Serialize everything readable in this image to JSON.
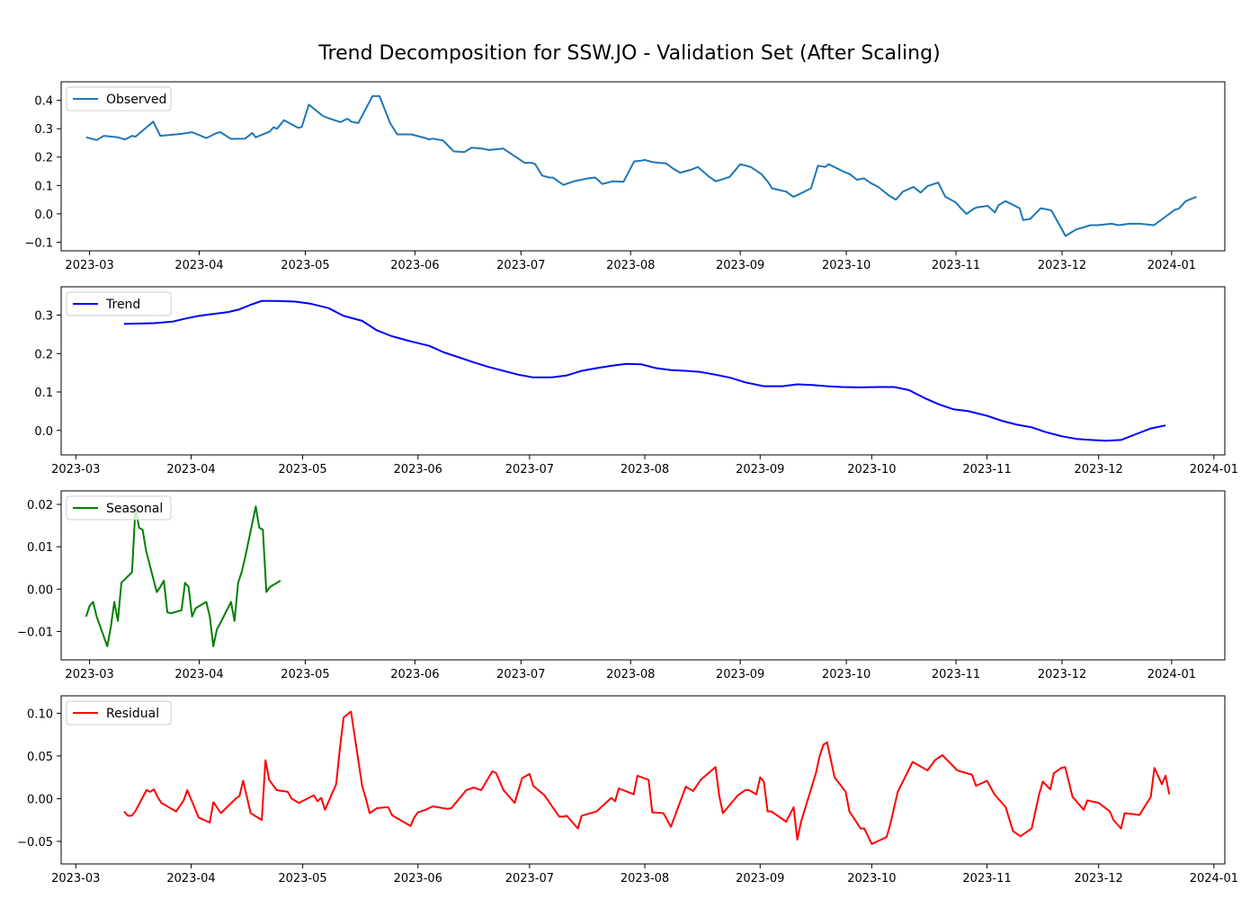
{
  "figure": {
    "title": "Trend Decomposition for SSW.JO - Validation Set (After Scaling)"
  },
  "chart_data": [
    {
      "type": "line",
      "legend": "Observed",
      "legend_position": "top-left",
      "color": "#1f77b4",
      "x_ticks": [
        "2023-03",
        "2023-04",
        "2023-05",
        "2023-06",
        "2023-07",
        "2023-08",
        "2023-09",
        "2023-10",
        "2023-11",
        "2023-12",
        "2024-01"
      ],
      "y_ticks": [
        -0.1,
        0.0,
        0.1,
        0.2,
        0.3,
        0.4
      ],
      "y_tick_labels": [
        "−0.1",
        "0.0",
        "0.1",
        "0.2",
        "0.3",
        "0.4"
      ],
      "xlim": [
        "2023-02-23",
        "2024-01-14"
      ],
      "ylim": [
        -0.105,
        0.44
      ],
      "x": [
        "2023-02-28",
        "2023-03-03",
        "2023-03-05",
        "2023-03-09",
        "2023-03-11",
        "2023-03-13",
        "2023-03-14",
        "2023-03-19",
        "2023-03-21",
        "2023-03-23",
        "2023-03-27",
        "2023-03-30",
        "2023-04-03",
        "2023-04-06",
        "2023-04-07",
        "2023-04-10",
        "2023-04-14",
        "2023-04-16",
        "2023-04-17",
        "2023-04-21",
        "2023-04-22",
        "2023-04-23",
        "2023-04-25",
        "2023-04-29",
        "2023-04-30",
        "2023-05-02",
        "2023-05-06",
        "2023-05-08",
        "2023-05-11",
        "2023-05-12",
        "2023-05-13",
        "2023-05-14",
        "2023-05-16",
        "2023-05-20",
        "2023-05-22",
        "2023-05-25",
        "2023-05-27",
        "2023-05-31",
        "2023-06-04",
        "2023-06-05",
        "2023-06-06",
        "2023-06-09",
        "2023-06-10",
        "2023-06-12",
        "2023-06-15",
        "2023-06-17",
        "2023-06-20",
        "2023-06-22",
        "2023-06-26",
        "2023-06-29",
        "2023-07-02",
        "2023-07-04",
        "2023-07-05",
        "2023-07-07",
        "2023-07-09",
        "2023-07-10",
        "2023-07-13",
        "2023-07-16",
        "2023-07-20",
        "2023-07-22",
        "2023-07-24",
        "2023-07-27",
        "2023-07-30",
        "2023-08-02",
        "2023-08-04",
        "2023-08-05",
        "2023-08-07",
        "2023-08-09",
        "2023-08-11",
        "2023-08-13",
        "2023-08-15",
        "2023-08-18",
        "2023-08-20",
        "2023-08-23",
        "2023-08-25",
        "2023-08-26",
        "2023-08-29",
        "2023-09-01",
        "2023-09-04",
        "2023-09-07",
        "2023-09-09",
        "2023-09-10",
        "2023-09-14",
        "2023-09-16",
        "2023-09-17",
        "2023-09-21",
        "2023-09-23",
        "2023-09-25",
        "2023-09-26",
        "2023-09-30",
        "2023-10-02",
        "2023-10-04",
        "2023-10-06",
        "2023-10-08",
        "2023-10-10",
        "2023-10-13",
        "2023-10-15",
        "2023-10-17",
        "2023-10-20",
        "2023-10-22",
        "2023-10-24",
        "2023-10-27",
        "2023-10-29",
        "2023-11-01",
        "2023-11-02",
        "2023-11-04",
        "2023-11-06",
        "2023-11-07",
        "2023-11-10",
        "2023-11-12",
        "2023-11-13",
        "2023-11-15",
        "2023-11-19",
        "2023-11-20",
        "2023-11-22",
        "2023-11-25",
        "2023-11-27",
        "2023-11-28",
        "2023-12-02",
        "2023-12-05",
        "2023-12-07",
        "2023-12-09",
        "2023-12-11",
        "2023-12-15",
        "2023-12-17",
        "2023-12-20",
        "2023-12-23",
        "2023-12-27",
        "2024-01-02",
        "2024-01-03",
        "2024-01-05",
        "2024-01-08"
      ],
      "y": [
        0.27,
        0.26,
        0.275,
        0.27,
        0.262,
        0.275,
        0.272,
        0.325,
        0.275,
        0.277,
        0.282,
        0.288,
        0.267,
        0.285,
        0.288,
        0.264,
        0.265,
        0.285,
        0.27,
        0.29,
        0.305,
        0.3,
        0.33,
        0.303,
        0.306,
        0.385,
        0.345,
        0.335,
        0.323,
        0.33,
        0.335,
        0.325,
        0.32,
        0.415,
        0.415,
        0.32,
        0.28,
        0.28,
        0.267,
        0.262,
        0.265,
        0.258,
        0.245,
        0.22,
        0.218,
        0.233,
        0.23,
        0.225,
        0.23,
        0.205,
        0.18,
        0.18,
        0.175,
        0.135,
        0.128,
        0.128,
        0.102,
        0.115,
        0.125,
        0.128,
        0.105,
        0.115,
        0.113,
        0.185,
        0.187,
        0.19,
        0.183,
        0.18,
        0.178,
        0.16,
        0.145,
        0.155,
        0.165,
        0.133,
        0.115,
        0.118,
        0.13,
        0.175,
        0.165,
        0.14,
        0.11,
        0.09,
        0.078,
        0.06,
        0.065,
        0.09,
        0.17,
        0.165,
        0.175,
        0.15,
        0.14,
        0.12,
        0.125,
        0.108,
        0.095,
        0.065,
        0.05,
        0.078,
        0.095,
        0.075,
        0.098,
        0.11,
        0.06,
        0.04,
        0.025,
        0.0,
        0.018,
        0.023,
        0.028,
        0.005,
        0.03,
        0.045,
        0.02,
        -0.022,
        -0.018,
        0.02,
        0.015,
        0.012,
        -0.078,
        -0.055,
        -0.048,
        -0.04,
        -0.04,
        -0.035,
        -0.04,
        -0.035,
        -0.035,
        -0.04,
        0.015,
        0.018,
        0.045,
        0.06
      ]
    },
    {
      "type": "line",
      "legend": "Trend",
      "legend_position": "top-left",
      "color": "#0000ff",
      "x_ticks": [
        "2023-03",
        "2023-04",
        "2023-05",
        "2023-06",
        "2023-07",
        "2023-08",
        "2023-09",
        "2023-10",
        "2023-11",
        "2023-12",
        "2024-01"
      ],
      "y_ticks": [
        0.0,
        0.1,
        0.2,
        0.3
      ],
      "y_tick_labels": [
        "0.0",
        "0.1",
        "0.2",
        "0.3"
      ],
      "xlim": [
        "2023-02-27",
        "2024-01-02"
      ],
      "ylim": [
        -0.045,
        0.355
      ],
      "x": [
        "2023-03-14",
        "2023-03-18",
        "2023-03-22",
        "2023-03-27",
        "2023-03-30",
        "2023-04-03",
        "2023-04-07",
        "2023-04-11",
        "2023-04-14",
        "2023-04-17",
        "2023-04-20",
        "2023-04-24",
        "2023-04-29",
        "2023-05-03",
        "2023-05-08",
        "2023-05-12",
        "2023-05-17",
        "2023-05-21",
        "2023-05-25",
        "2023-05-30",
        "2023-06-04",
        "2023-06-08",
        "2023-06-12",
        "2023-06-16",
        "2023-06-20",
        "2023-06-24",
        "2023-06-28",
        "2023-07-02",
        "2023-07-07",
        "2023-07-11",
        "2023-07-15",
        "2023-07-19",
        "2023-07-23",
        "2023-07-27",
        "2023-07-31",
        "2023-08-04",
        "2023-08-08",
        "2023-08-12",
        "2023-08-16",
        "2023-08-20",
        "2023-08-24",
        "2023-08-28",
        "2023-09-02",
        "2023-09-07",
        "2023-09-11",
        "2023-09-15",
        "2023-09-19",
        "2023-09-23",
        "2023-09-28",
        "2023-10-03",
        "2023-10-07",
        "2023-10-11",
        "2023-10-15",
        "2023-10-19",
        "2023-10-23",
        "2023-10-27",
        "2023-11-01",
        "2023-11-05",
        "2023-11-09",
        "2023-11-13",
        "2023-11-17",
        "2023-11-21",
        "2023-11-25",
        "2023-11-29",
        "2023-12-03",
        "2023-12-07",
        "2023-12-11",
        "2023-12-15",
        "2023-12-19"
      ],
      "y": [
        0.277,
        0.278,
        0.279,
        0.283,
        0.29,
        0.298,
        0.303,
        0.308,
        0.315,
        0.327,
        0.337,
        0.337,
        0.335,
        0.33,
        0.318,
        0.298,
        0.285,
        0.26,
        0.245,
        0.232,
        0.22,
        0.203,
        0.19,
        0.177,
        0.165,
        0.155,
        0.145,
        0.138,
        0.138,
        0.143,
        0.155,
        0.162,
        0.168,
        0.173,
        0.172,
        0.162,
        0.157,
        0.155,
        0.152,
        0.145,
        0.137,
        0.125,
        0.115,
        0.115,
        0.12,
        0.118,
        0.115,
        0.113,
        0.112,
        0.113,
        0.113,
        0.105,
        0.085,
        0.068,
        0.055,
        0.05,
        0.038,
        0.025,
        0.015,
        0.008,
        -0.005,
        -0.015,
        -0.022,
        -0.025,
        -0.027,
        -0.025,
        -0.01,
        0.005,
        0.013
      ]
    },
    {
      "type": "line",
      "legend": "Seasonal",
      "legend_position": "top-left",
      "color": "#008000",
      "x_ticks": [
        "2023-03",
        "2023-04",
        "2023-05",
        "2023-06",
        "2023-07",
        "2023-08",
        "2023-09",
        "2023-10",
        "2023-11",
        "2023-12",
        "2024-01"
      ],
      "y_ticks": [
        -0.01,
        0.0,
        0.01,
        0.02
      ],
      "y_tick_labels": [
        "−0.01",
        "0.00",
        "0.01",
        "0.02"
      ],
      "xlim": [
        "2023-02-23",
        "2024-01-14"
      ],
      "ylim": [
        -0.015,
        0.0215
      ],
      "x": [
        "2023-02-28",
        "2023-03-01",
        "2023-03-02",
        "2023-03-03",
        "2023-03-06",
        "2023-03-07",
        "2023-03-08",
        "2023-03-09",
        "2023-03-10",
        "2023-03-13",
        "2023-03-14",
        "2023-03-15",
        "2023-03-16",
        "2023-03-17",
        "2023-03-20",
        "2023-03-21",
        "2023-03-22",
        "2023-03-23",
        "2023-03-24",
        "2023-03-27",
        "2023-03-28",
        "2023-03-29",
        "2023-03-30",
        "2023-03-31",
        "2023-04-03",
        "2023-04-04",
        "2023-04-05",
        "2023-04-06",
        "2023-04-07",
        "2023-04-10",
        "2023-04-11",
        "2023-04-12",
        "2023-04-13",
        "2023-04-14",
        "2023-04-17",
        "2023-04-18",
        "2023-04-19",
        "2023-04-20",
        "2023-04-21",
        "2023-04-24"
      ],
      "y": [
        -0.0065,
        -0.004,
        -0.003,
        -0.0065,
        -0.0135,
        -0.009,
        -0.003,
        -0.0075,
        0.0015,
        0.004,
        0.0195,
        0.0145,
        0.014,
        0.009,
        -0.0007,
        0.0005,
        0.002,
        -0.0055,
        -0.0057,
        -0.005,
        0.0015,
        0.0005,
        -0.0065,
        -0.0045,
        -0.003,
        -0.0065,
        -0.0135,
        -0.0095,
        -0.008,
        -0.003,
        -0.0075,
        0.0015,
        0.004,
        0.0075,
        0.0195,
        0.0145,
        0.014,
        -0.0007,
        0.0005,
        0.002
      ]
    },
    {
      "type": "line",
      "legend": "Residual",
      "legend_position": "top-left",
      "color": "#ff0000",
      "x_ticks": [
        "2023-03",
        "2023-04",
        "2023-05",
        "2023-06",
        "2023-07",
        "2023-08",
        "2023-09",
        "2023-10",
        "2023-11",
        "2023-12",
        "2024-01"
      ],
      "y_ticks": [
        -0.05,
        0.0,
        0.05,
        0.1
      ],
      "y_tick_labels": [
        "−0.05",
        "0.00",
        "0.05",
        "0.10"
      ],
      "xlim": [
        "2023-02-27",
        "2024-01-02"
      ],
      "ylim": [
        -0.068,
        0.112
      ],
      "x": [
        "2023-03-14",
        "2023-03-15",
        "2023-03-16",
        "2023-03-17",
        "2023-03-20",
        "2023-03-21",
        "2023-03-22",
        "2023-03-23",
        "2023-03-24",
        "2023-03-28",
        "2023-03-30",
        "2023-03-31",
        "2023-04-03",
        "2023-04-06",
        "2023-04-07",
        "2023-04-09",
        "2023-04-13",
        "2023-04-14",
        "2023-04-15",
        "2023-04-17",
        "2023-04-20",
        "2023-04-21",
        "2023-04-22",
        "2023-04-24",
        "2023-04-27",
        "2023-04-28",
        "2023-04-30",
        "2023-05-04",
        "2023-05-05",
        "2023-05-06",
        "2023-05-07",
        "2023-05-10",
        "2023-05-11",
        "2023-05-12",
        "2023-05-14",
        "2023-05-17",
        "2023-05-18",
        "2023-05-19",
        "2023-05-21",
        "2023-05-24",
        "2023-05-25",
        "2023-05-26",
        "2023-05-30",
        "2023-05-31",
        "2023-06-01",
        "2023-06-03",
        "2023-06-05",
        "2023-06-09",
        "2023-06-10",
        "2023-06-14",
        "2023-06-16",
        "2023-06-18",
        "2023-06-21",
        "2023-06-22",
        "2023-06-24",
        "2023-06-27",
        "2023-06-29",
        "2023-07-01",
        "2023-07-02",
        "2023-07-05",
        "2023-07-08",
        "2023-07-09",
        "2023-07-10",
        "2023-07-11",
        "2023-07-14",
        "2023-07-15",
        "2023-07-19",
        "2023-07-23",
        "2023-07-24",
        "2023-07-25",
        "2023-07-29",
        "2023-07-30",
        "2023-08-02",
        "2023-08-03",
        "2023-08-06",
        "2023-08-07",
        "2023-08-08",
        "2023-08-12",
        "2023-08-14",
        "2023-08-16",
        "2023-08-20",
        "2023-08-21",
        "2023-08-22",
        "2023-08-26",
        "2023-08-28",
        "2023-08-29",
        "2023-08-31",
        "2023-09-01",
        "2023-09-02",
        "2023-09-03",
        "2023-09-04",
        "2023-09-08",
        "2023-09-10",
        "2023-09-11",
        "2023-09-12",
        "2023-09-16",
        "2023-09-17",
        "2023-09-18",
        "2023-09-19",
        "2023-09-21",
        "2023-09-24",
        "2023-09-25",
        "2023-09-28",
        "2023-09-29",
        "2023-10-01",
        "2023-10-05",
        "2023-10-06",
        "2023-10-08",
        "2023-10-12",
        "2023-10-16",
        "2023-10-18",
        "2023-10-20",
        "2023-10-24",
        "2023-10-28",
        "2023-10-29",
        "2023-11-01",
        "2023-11-03",
        "2023-11-06",
        "2023-11-08",
        "2023-11-10",
        "2023-11-13",
        "2023-11-15",
        "2023-11-16",
        "2023-11-18",
        "2023-11-19",
        "2023-11-21",
        "2023-11-22",
        "2023-11-24",
        "2023-11-27",
        "2023-11-28",
        "2023-12-01",
        "2023-12-04",
        "2023-12-05",
        "2023-12-07",
        "2023-12-08",
        "2023-12-12",
        "2023-12-15",
        "2023-12-16",
        "2023-12-18",
        "2023-12-19",
        "2023-12-20"
      ],
      "y": [
        -0.015,
        -0.02,
        -0.02,
        -0.015,
        0.01,
        0.008,
        0.011,
        0.002,
        -0.005,
        -0.015,
        -0.002,
        0.01,
        -0.022,
        -0.028,
        -0.004,
        -0.017,
        0.0,
        0.003,
        0.021,
        -0.017,
        -0.025,
        0.045,
        0.022,
        0.01,
        0.008,
        0.0,
        -0.005,
        0.004,
        -0.003,
        0.001,
        -0.013,
        0.017,
        0.058,
        0.095,
        0.102,
        0.015,
        0.0,
        -0.017,
        -0.011,
        -0.01,
        -0.019,
        -0.022,
        -0.032,
        -0.022,
        -0.016,
        -0.013,
        -0.009,
        -0.012,
        -0.011,
        0.01,
        0.013,
        0.01,
        0.032,
        0.03,
        0.01,
        -0.005,
        0.024,
        0.029,
        0.015,
        0.004,
        -0.015,
        -0.021,
        -0.021,
        -0.02,
        -0.035,
        -0.02,
        -0.015,
        0.001,
        -0.003,
        0.012,
        0.005,
        0.027,
        0.022,
        -0.016,
        -0.017,
        -0.025,
        -0.033,
        0.014,
        0.009,
        0.022,
        0.037,
        0.003,
        -0.017,
        0.004,
        0.01,
        0.01,
        0.005,
        0.025,
        0.02,
        -0.015,
        -0.015,
        -0.027,
        -0.01,
        -0.048,
        -0.027,
        0.03,
        0.05,
        0.063,
        0.066,
        0.025,
        0.008,
        -0.015,
        -0.035,
        -0.035,
        -0.053,
        -0.045,
        -0.03,
        0.008,
        0.043,
        0.033,
        0.045,
        0.051,
        0.033,
        0.028,
        0.015,
        0.021,
        0.005,
        -0.01,
        -0.038,
        -0.044,
        -0.035,
        0.005,
        0.02,
        0.011,
        0.03,
        0.036,
        0.037,
        0.002,
        -0.013,
        -0.002,
        -0.005,
        -0.015,
        -0.025,
        -0.035,
        -0.017,
        -0.019,
        0.002,
        0.036,
        0.017,
        0.027,
        0.005
      ]
    }
  ]
}
